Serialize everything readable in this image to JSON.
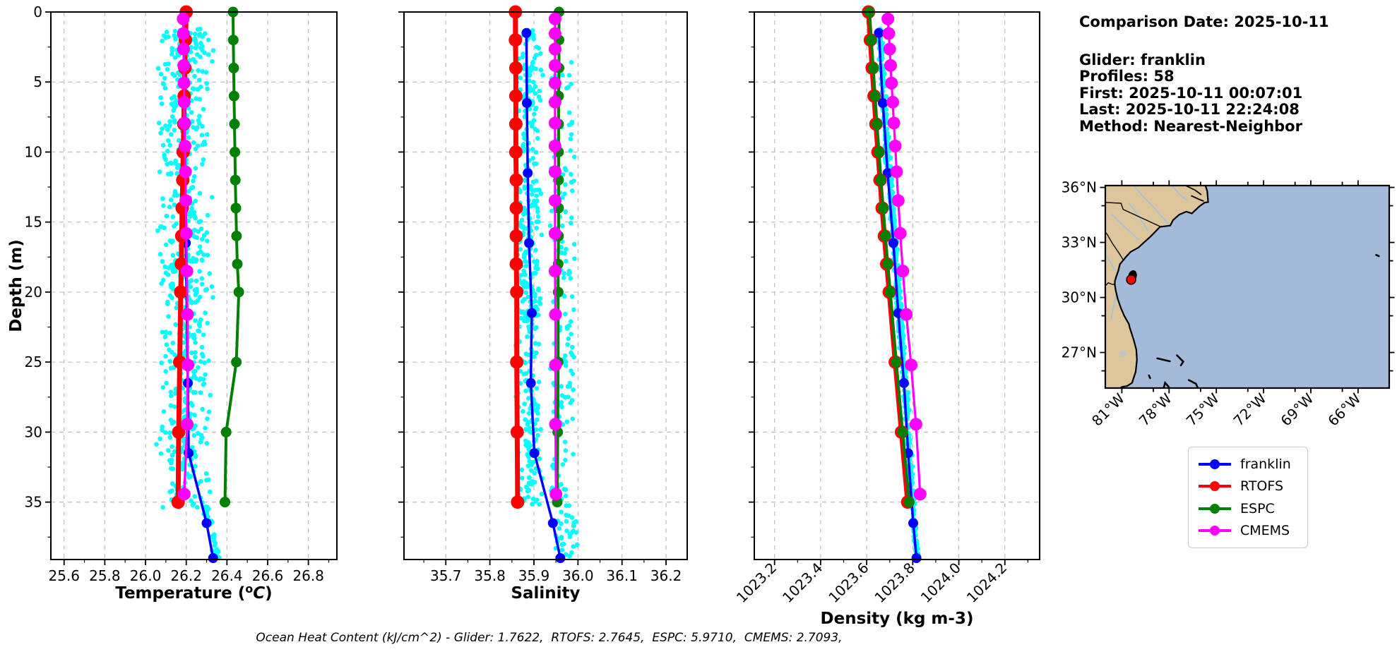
{
  "info": {
    "date": "Comparison Date: 2025-10-11",
    "glider": "Glider: franklin",
    "profiles": "Profiles: 58",
    "first": "First: 2025-10-11 00:07:01",
    "last": "Last: 2025-10-11 22:24:08",
    "method": "Method: Nearest-Neighbor"
  },
  "footer": {
    "ohc_text": "Ocean Heat Content (kJ/cm^2) - Glider: 1.7622,  RTOFS: 2.7645,  ESPC: 5.9710,  CMEMS: 2.7093,"
  },
  "legend": {
    "items": [
      {
        "label": "franklin",
        "color": "#0000ff"
      },
      {
        "label": "RTOFS",
        "color": "#ff0000"
      },
      {
        "label": "ESPC",
        "color": "#008000"
      },
      {
        "label": "CMEMS",
        "color": "#ff00ff"
      }
    ]
  },
  "colors": {
    "scatter": "#00ffff",
    "grid": "#bdbdbd",
    "spine": "#000000",
    "land": "#dec69c",
    "ocean": "#a3bbd8",
    "river": "#9cc3e6",
    "lake": "#bfc4c6",
    "marker_red": "#ff0000"
  },
  "chart_data": [
    {
      "id": "temperature",
      "type": "line",
      "xlabel": {
        "pre": "Temperature (",
        "sup": "o",
        "unit": "C",
        "post": ")"
      },
      "ylabel": "Depth (m)",
      "xlim": [
        25.535,
        26.94
      ],
      "ylim": [
        0,
        39.1
      ],
      "xticks": [
        25.6,
        25.8,
        26.0,
        26.2,
        26.4,
        26.6,
        26.8
      ],
      "xtick_labels": [
        "25.6",
        "25.8",
        "26.0",
        "26.2",
        "26.4",
        "26.6",
        "26.8"
      ],
      "yticks": [
        0,
        5,
        10,
        15,
        20,
        25,
        30,
        35
      ],
      "ytick_labels": [
        "0",
        "5",
        "10",
        "15",
        "20",
        "25",
        "30",
        "35"
      ],
      "rotated_xticklabels": false,
      "grid": true,
      "series": [
        {
          "name": "franklin",
          "depths": [
            1.5,
            6.5,
            11.5,
            16.5,
            21.5,
            26.5,
            31.5,
            36.5,
            39.0
          ],
          "values": [
            26.19,
            26.191,
            26.195,
            26.198,
            26.203,
            26.208,
            26.212,
            26.3,
            26.332
          ]
        },
        {
          "name": "RTOFS",
          "depths": [
            0,
            2,
            4,
            6,
            8,
            10,
            12,
            14,
            16,
            18,
            20,
            25,
            30,
            35
          ],
          "values": [
            26.2,
            26.196,
            26.193,
            26.19,
            26.188,
            26.185,
            26.183,
            26.18,
            26.178,
            26.176,
            26.173,
            26.168,
            26.163,
            26.16
          ]
        },
        {
          "name": "ESPC",
          "depths": [
            0,
            2,
            4,
            6,
            8,
            10,
            12,
            14,
            16,
            18,
            20,
            25,
            30,
            35
          ],
          "values": [
            26.43,
            26.431,
            26.433,
            26.435,
            26.437,
            26.439,
            26.441,
            26.444,
            26.447,
            26.451,
            26.458,
            26.446,
            26.396,
            26.39
          ]
        },
        {
          "name": "CMEMS",
          "depths": [
            0.49,
            1.54,
            2.65,
            3.82,
            5.08,
            6.44,
            7.93,
            9.57,
            11.41,
            13.47,
            15.81,
            18.5,
            21.6,
            25.21,
            29.44,
            34.43
          ],
          "values": [
            26.185,
            26.186,
            26.187,
            26.188,
            26.189,
            26.19,
            26.192,
            26.194,
            26.196,
            26.198,
            26.2,
            26.203,
            26.206,
            26.208,
            26.205,
            26.19
          ]
        }
      ],
      "scatter": [
        {
          "n": 620,
          "depth": [
            1.2,
            35.4
          ],
          "mode": "tri",
          "center": 26.192,
          "half": 0.145,
          "clip": [
            26.052,
            26.345
          ]
        },
        {
          "n": 30,
          "depth": [
            35.0,
            39.0
          ],
          "mode": "follow",
          "offset": 0.018,
          "jitter": 0.022
        }
      ]
    },
    {
      "id": "salinity",
      "type": "line",
      "xlabel": {
        "pre": "Salinity",
        "sup": "",
        "unit": "",
        "post": ""
      },
      "ylabel": "",
      "xlim": [
        35.605,
        36.248
      ],
      "ylim": [
        0,
        39.1
      ],
      "xticks": [
        35.7,
        35.8,
        35.9,
        36.0,
        36.1,
        36.2
      ],
      "xtick_labels": [
        "35.7",
        "35.8",
        "35.9",
        "36.0",
        "36.1",
        "36.2"
      ],
      "yticks": [
        0,
        5,
        10,
        15,
        20,
        25,
        30,
        35
      ],
      "ytick_labels": [],
      "rotated_xticklabels": false,
      "grid": true,
      "series": [
        {
          "name": "franklin",
          "depths": [
            1.5,
            6.5,
            11.5,
            16.5,
            21.5,
            26.5,
            31.5,
            36.5,
            39.0
          ],
          "values": [
            35.883,
            35.884,
            35.886,
            35.889,
            35.895,
            35.893,
            35.901,
            35.943,
            35.96
          ]
        },
        {
          "name": "RTOFS",
          "depths": [
            0,
            2,
            4,
            6,
            8,
            10,
            12,
            14,
            16,
            18,
            20,
            25,
            30,
            35
          ],
          "values": [
            35.858,
            35.858,
            35.859,
            35.859,
            35.859,
            35.859,
            35.86,
            35.86,
            35.86,
            35.86,
            35.861,
            35.861,
            35.862,
            35.863
          ]
        },
        {
          "name": "ESPC",
          "depths": [
            0,
            2,
            4,
            6,
            8,
            10,
            12,
            14,
            16,
            18,
            20,
            25,
            30,
            35
          ],
          "values": [
            35.957,
            35.957,
            35.957,
            35.956,
            35.956,
            35.956,
            35.956,
            35.956,
            35.956,
            35.955,
            35.955,
            35.955,
            35.954,
            35.953
          ]
        },
        {
          "name": "CMEMS",
          "depths": [
            0.49,
            1.54,
            2.65,
            3.82,
            5.08,
            6.44,
            7.93,
            9.57,
            11.41,
            13.47,
            15.81,
            18.5,
            21.6,
            25.21,
            29.44,
            34.43
          ],
          "values": [
            35.948,
            35.948,
            35.948,
            35.948,
            35.948,
            35.948,
            35.948,
            35.948,
            35.948,
            35.948,
            35.948,
            35.948,
            35.949,
            35.949,
            35.949,
            35.95
          ]
        }
      ],
      "scatter": [
        {
          "n": 400,
          "depth": [
            1.2,
            35.2
          ],
          "mode": "tri",
          "center": 35.888,
          "half": 0.034,
          "clip": [
            35.859,
            35.932
          ]
        },
        {
          "n": 155,
          "depth": [
            3.5,
            35.2
          ],
          "mode": "uni",
          "range": [
            35.937,
            35.993
          ]
        },
        {
          "n": 34,
          "depth": [
            35.0,
            39.0
          ],
          "mode": "uni",
          "range": [
            35.948,
            35.999
          ]
        }
      ]
    },
    {
      "id": "density",
      "type": "line",
      "xlabel": {
        "pre": "Density (kg m-3)",
        "sup": "",
        "unit": "",
        "post": ""
      },
      "ylabel": "",
      "xlim": [
        1023.112,
        1024.351
      ],
      "ylim": [
        0,
        39.1
      ],
      "xticks": [
        1023.2,
        1023.4,
        1023.6,
        1023.8,
        1024.0,
        1024.2
      ],
      "xtick_labels": [
        "1023.2",
        "1023.4",
        "1023.6",
        "1023.8",
        "1024.0",
        "1024.2"
      ],
      "yticks": [
        0,
        5,
        10,
        15,
        20,
        25,
        30,
        35
      ],
      "ytick_labels": [],
      "rotated_xticklabels": true,
      "grid": true,
      "series": [
        {
          "name": "franklin",
          "depths": [
            1.5,
            6.5,
            11.5,
            16.5,
            21.5,
            26.5,
            31.5,
            36.5,
            39.0
          ],
          "values": [
            1023.653,
            1023.67,
            1023.691,
            1023.716,
            1023.737,
            1023.762,
            1023.78,
            1023.802,
            1023.816
          ]
        },
        {
          "name": "RTOFS",
          "depths": [
            0,
            2,
            4,
            6,
            8,
            10,
            12,
            14,
            16,
            18,
            20,
            25,
            30,
            35
          ],
          "values": [
            1023.608,
            1023.616,
            1023.624,
            1023.632,
            1023.64,
            1023.649,
            1023.658,
            1023.667,
            1023.677,
            1023.687,
            1023.698,
            1023.724,
            1023.751,
            1023.778
          ]
        },
        {
          "name": "ESPC",
          "depths": [
            0,
            2,
            4,
            6,
            8,
            10,
            12,
            14,
            16,
            18,
            20,
            25,
            30,
            35
          ],
          "values": [
            1023.612,
            1023.62,
            1023.628,
            1023.636,
            1023.644,
            1023.653,
            1023.662,
            1023.671,
            1023.681,
            1023.691,
            1023.702,
            1023.728,
            1023.756,
            1023.785
          ]
        },
        {
          "name": "CMEMS",
          "depths": [
            0.49,
            1.54,
            2.65,
            3.82,
            5.08,
            6.44,
            7.93,
            9.57,
            11.41,
            13.47,
            15.81,
            18.5,
            21.6,
            25.21,
            29.44,
            34.43
          ],
          "values": [
            1023.692,
            1023.696,
            1023.7,
            1023.704,
            1023.708,
            1023.713,
            1023.718,
            1023.724,
            1023.73,
            1023.737,
            1023.746,
            1023.757,
            1023.772,
            1023.793,
            1023.814,
            1023.832
          ]
        }
      ],
      "scatter": [
        {
          "n": 600,
          "depth": [
            1.2,
            35.2
          ],
          "mode": "follow",
          "offset": 0.005,
          "jitter": 0.014
        },
        {
          "n": 40,
          "depth": [
            35.0,
            39.0
          ],
          "mode": "follow",
          "offset": 0.004,
          "jitter": 0.009
        }
      ]
    },
    {
      "id": "map",
      "type": "map",
      "extent": {
        "lon_min": -82.05,
        "lon_max": -64.02,
        "lat_min": 25.06,
        "lat_max": 36.1
      },
      "lat_ticks": [
        {
          "deg": 36,
          "label": "36°N"
        },
        {
          "deg": 33,
          "label": "33°N"
        },
        {
          "deg": 30,
          "label": "30°N"
        },
        {
          "deg": 27,
          "label": "27°N"
        }
      ],
      "lon_ticks": [
        {
          "deg": -81,
          "label": "81°W"
        },
        {
          "deg": -78,
          "label": "78°W"
        },
        {
          "deg": -75,
          "label": "75°W"
        },
        {
          "deg": -72,
          "label": "72°W"
        },
        {
          "deg": -69,
          "label": "69°W"
        },
        {
          "deg": -66,
          "label": "66°W"
        }
      ],
      "glider_position": {
        "lon": -80.41,
        "lat": 30.97
      },
      "track_position": {
        "lon": -80.32,
        "lat": 31.18
      }
    }
  ]
}
